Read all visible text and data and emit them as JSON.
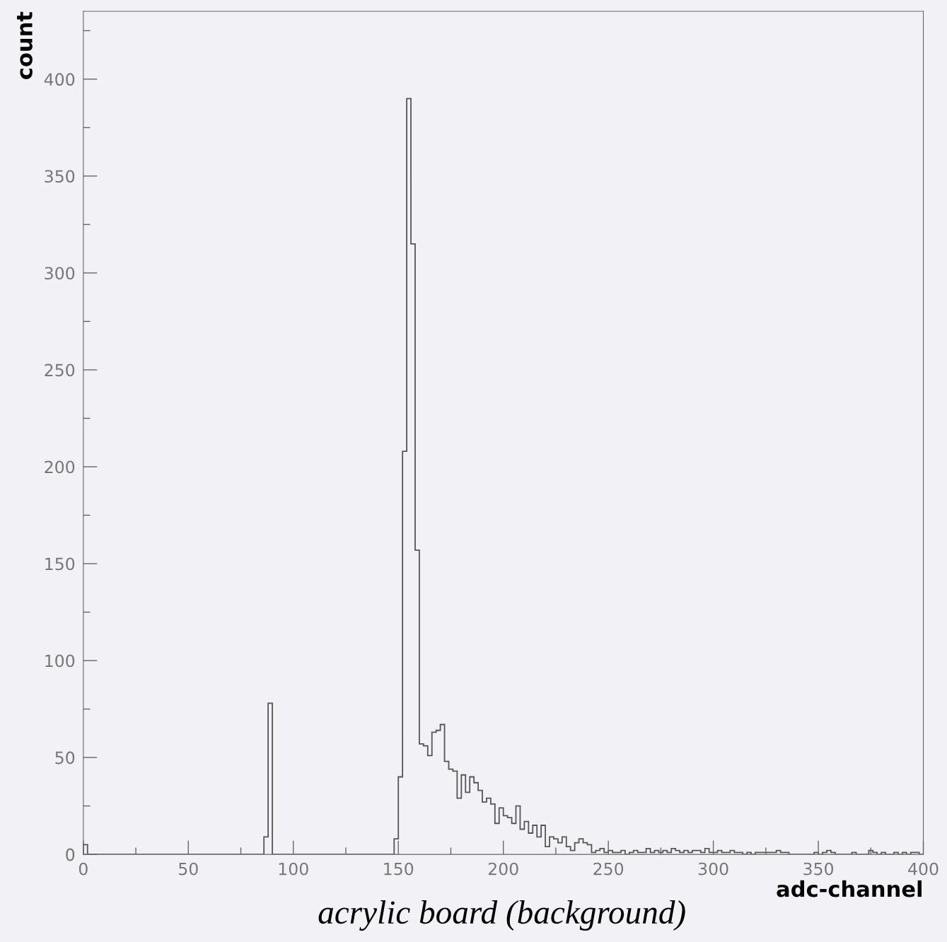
{
  "chart_data": {
    "type": "histogram",
    "xlabel": "adc-channel",
    "ylabel": "count",
    "annotations": [
      "acrylic board (background)"
    ],
    "bins": [
      0,
      2,
      4,
      6,
      8,
      10,
      12,
      14,
      16,
      18,
      20,
      22,
      24,
      26,
      28,
      30,
      32,
      34,
      36,
      38,
      40,
      42,
      44,
      46,
      48,
      50,
      52,
      54,
      56,
      58,
      60,
      62,
      64,
      66,
      68,
      70,
      72,
      74,
      76,
      78,
      80,
      82,
      84,
      86,
      88,
      90,
      92,
      94,
      96,
      98,
      100,
      102,
      104,
      106,
      108,
      110,
      112,
      114,
      116,
      118,
      120,
      122,
      124,
      126,
      128,
      130,
      132,
      134,
      136,
      138,
      140,
      142,
      144,
      146,
      148,
      150,
      152,
      154,
      156,
      158,
      160,
      162,
      164,
      166,
      168,
      170,
      172,
      174,
      176,
      178,
      180,
      182,
      184,
      186,
      188,
      190,
      192,
      194,
      196,
      198,
      200,
      202,
      204,
      206,
      208,
      210,
      212,
      214,
      216,
      218,
      220,
      222,
      224,
      226,
      228,
      230,
      232,
      234,
      236,
      238,
      240,
      242,
      244,
      246,
      248,
      250,
      252,
      254,
      256,
      258,
      260,
      262,
      264,
      266,
      268,
      270,
      272,
      274,
      276,
      278,
      280,
      282,
      284,
      286,
      288,
      290,
      292,
      294,
      296,
      298,
      300,
      302,
      304,
      306,
      308,
      310,
      312,
      314,
      316,
      318,
      320,
      322,
      324,
      326,
      328,
      330,
      332,
      334,
      336,
      338,
      340,
      342,
      344,
      346,
      348,
      350,
      352,
      354,
      356,
      358,
      360,
      362,
      364,
      366,
      368,
      370,
      372,
      374,
      376,
      378,
      380,
      382,
      384,
      386,
      388,
      390,
      392,
      394,
      396,
      398,
      400
    ],
    "values": [
      5,
      0,
      0,
      0,
      0,
      0,
      0,
      0,
      0,
      0,
      0,
      0,
      0,
      0,
      0,
      0,
      0,
      0,
      0,
      0,
      0,
      0,
      0,
      0,
      0,
      0,
      0,
      0,
      0,
      0,
      0,
      0,
      0,
      0,
      0,
      0,
      0,
      0,
      0,
      0,
      0,
      0,
      0,
      9,
      78,
      0,
      0,
      0,
      0,
      0,
      0,
      0,
      0,
      0,
      0,
      0,
      0,
      0,
      0,
      0,
      0,
      0,
      0,
      0,
      0,
      0,
      0,
      0,
      0,
      0,
      0,
      0,
      0,
      0,
      8,
      40,
      208,
      390,
      315,
      157,
      57,
      56,
      51,
      63,
      64,
      67,
      48,
      44,
      43,
      29,
      41,
      32,
      40,
      37,
      33,
      27,
      29,
      26,
      16,
      24,
      20,
      19,
      16,
      25,
      13,
      17,
      11,
      15,
      9,
      15,
      4,
      9,
      8,
      6,
      9,
      4,
      2,
      6,
      8,
      6,
      5,
      1,
      2,
      3,
      1,
      2,
      1,
      1,
      2,
      0,
      1,
      2,
      1,
      1,
      3,
      1,
      2,
      1,
      2,
      1,
      3,
      2,
      1,
      2,
      1,
      2,
      2,
      1,
      3,
      1,
      1,
      2,
      1,
      1,
      2,
      1,
      1,
      0,
      1,
      0,
      1,
      1,
      1,
      1,
      1,
      2,
      1,
      1,
      0,
      0,
      0,
      0,
      0,
      0,
      1,
      0,
      1,
      2,
      1,
      0,
      0,
      0,
      0,
      1,
      0,
      0,
      0,
      2,
      1,
      0,
      1,
      0,
      0,
      1,
      0,
      1,
      0,
      1,
      1,
      0
    ],
    "color": "#555555",
    "xlim": [
      0,
      400
    ],
    "ylim": [
      0,
      435
    ],
    "xticks": [
      0,
      {
        "value": 25,
        "label": null
      },
      50,
      {
        "value": 75,
        "label": null
      },
      100,
      {
        "value": 125,
        "label": null
      },
      150,
      {
        "value": 175,
        "label": null
      },
      200,
      {
        "value": 225,
        "label": null
      },
      250,
      {
        "value": 275,
        "label": null
      },
      300,
      {
        "value": 325,
        "label": null
      },
      350,
      {
        "value": 375,
        "label": null
      },
      400
    ],
    "yticks": [
      0,
      {
        "value": 25,
        "label": null
      },
      50,
      {
        "value": 75,
        "label": null
      },
      100,
      {
        "value": 125,
        "label": null
      },
      150,
      {
        "value": 175,
        "label": null
      },
      200,
      {
        "value": 225,
        "label": null
      },
      250,
      {
        "value": 275,
        "label": null
      },
      300,
      {
        "value": 325,
        "label": null
      },
      350,
      {
        "value": 375,
        "label": null
      },
      400,
      {
        "value": 425,
        "label": null
      }
    ],
    "grid": false
  }
}
